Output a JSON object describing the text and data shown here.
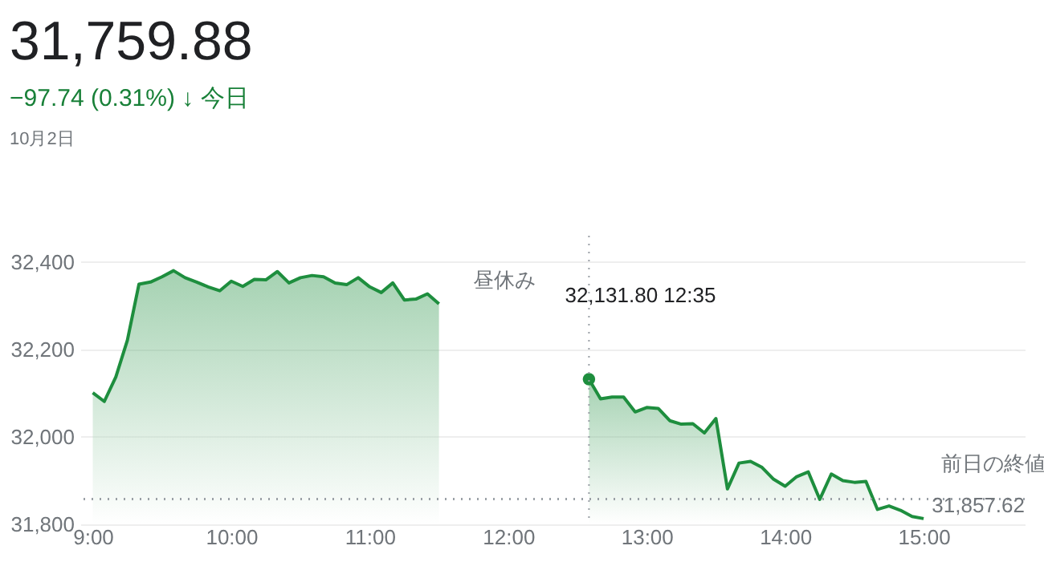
{
  "chart_data": {
    "type": "area",
    "title": "31,759.88",
    "subtitle": "−97.74 (0.31%) ↓ 今日",
    "annotations": [
      "10月2日",
      "昼休み",
      "32,131.80 12:35",
      {
        "text": "31,857.62",
        "x": 15.73,
        "y": 31857.62
      }
    ],
    "series": [
      {
        "color": "#1e8e3e",
        "x": [
          9.0,
          9.0833,
          9.1667,
          9.25,
          9.3333,
          9.4167,
          9.5,
          9.5833,
          9.6667,
          9.75,
          9.8333,
          9.9167,
          10.0,
          10.0833,
          10.1667,
          10.25,
          10.3333,
          10.4167,
          10.5,
          10.5833,
          10.6667,
          10.75,
          10.8333,
          10.9167,
          11.0,
          11.0833,
          11.1667,
          11.25,
          11.3333,
          11.4167,
          11.5
        ],
        "values": [
          32101,
          32081,
          32137,
          32221,
          32349,
          32354,
          32366,
          32380,
          32364,
          32354,
          32343,
          32334,
          32356,
          32344,
          32360,
          32359,
          32378,
          32352,
          32364,
          32369,
          32366,
          32352,
          32348,
          32364,
          32343,
          32330,
          32352,
          32313,
          32315,
          32327,
          32304
        ]
      },
      {
        "color": "#1e8e3e",
        "x": [
          12.5833,
          12.6667,
          12.75,
          12.8333,
          12.9167,
          13.0,
          13.0833,
          13.1667,
          13.25,
          13.3333,
          13.4167,
          13.5,
          13.5833,
          13.6667,
          13.75,
          13.8333,
          13.9167,
          14.0,
          14.0833,
          14.1667,
          14.25,
          14.3333,
          14.4167,
          14.5,
          14.5833,
          14.6667,
          14.75,
          14.8333,
          14.9167,
          15.0
        ],
        "values": [
          32131.8,
          32087,
          32091,
          32091,
          32057,
          32067,
          32065,
          32037,
          32029,
          32030,
          32009,
          32042,
          31881,
          31940,
          31944,
          31930,
          31903,
          31887,
          31909,
          31920,
          31857,
          31915,
          31900,
          31896,
          31898,
          31834,
          31842,
          31832,
          31818,
          31813
        ]
      },
      {
        "type": "scatter",
        "marker": "circle",
        "color": "#1e8e3e",
        "x": [
          12.5833
        ],
        "values": [
          32131.8
        ]
      }
    ],
    "xlim": [
      8.91,
      15.73
    ],
    "xticks": [
      {
        "value": 9,
        "label": "9:00"
      },
      {
        "value": 10,
        "label": "10:00"
      },
      {
        "value": 11,
        "label": "11:00"
      },
      {
        "value": 12,
        "label": "12:00"
      },
      {
        "value": 13,
        "label": "13:00"
      },
      {
        "value": 14,
        "label": "14:00"
      },
      {
        "value": 15,
        "label": "15:00"
      }
    ],
    "ylim": [
      31800,
      32460
    ],
    "yticks": [
      {
        "value": 31800,
        "label": "31,800"
      },
      {
        "value": 32000,
        "label": "32,000"
      },
      {
        "value": 32200,
        "label": "32,200"
      },
      {
        "value": 32400,
        "label": "32,400"
      }
    ],
    "ref_lines": [
      {
        "axis": "y",
        "value": 31857.62,
        "label": "前日の終値",
        "color": "#9aa0a6",
        "line_style": "dotted"
      },
      {
        "axis": "x",
        "value": 12.5833,
        "color": "#9aa0a6",
        "line_style": "dotted"
      }
    ],
    "grid": "y"
  }
}
